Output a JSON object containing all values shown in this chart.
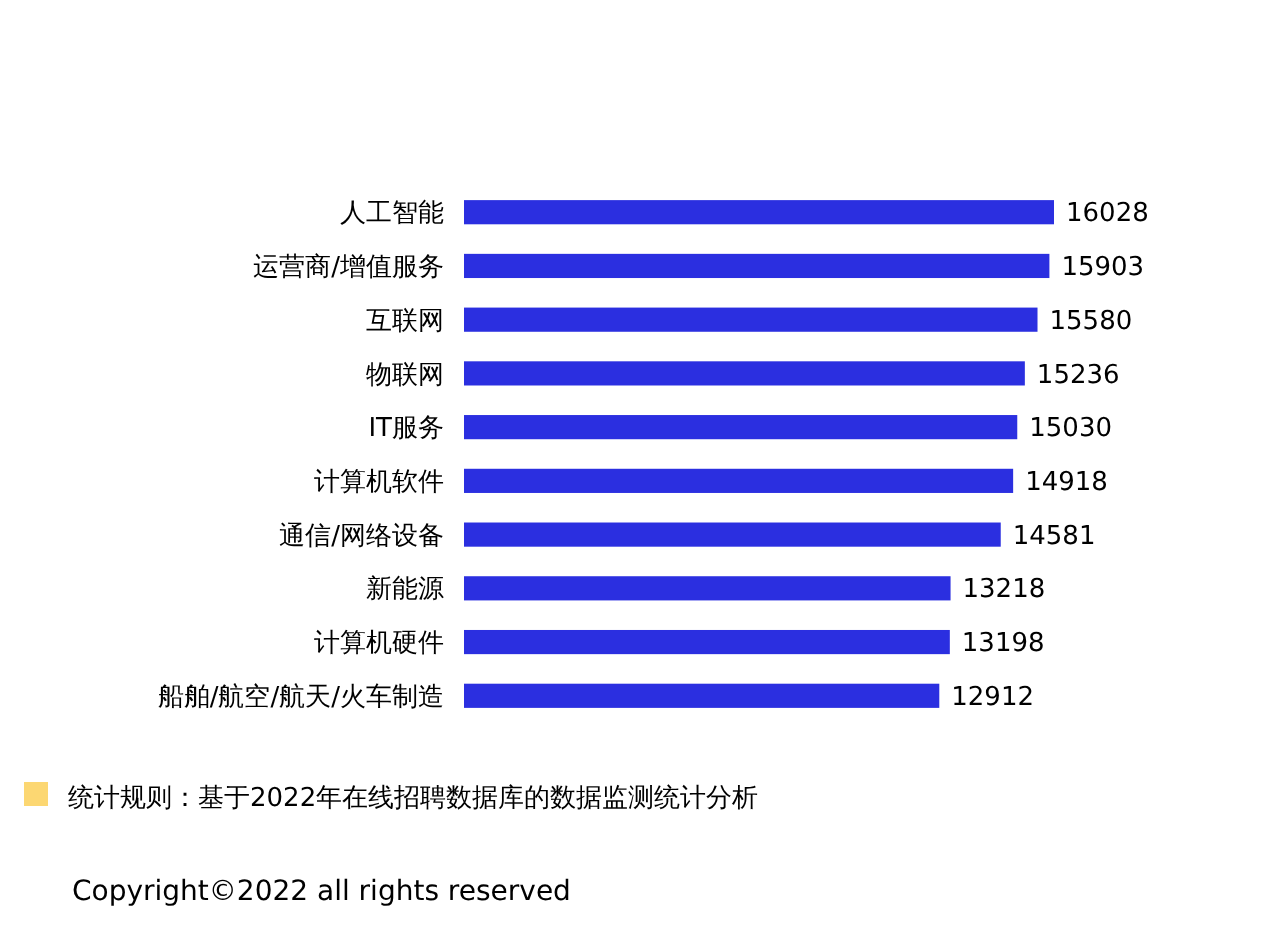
{
  "chart_data": {
    "type": "bar",
    "orientation": "horizontal",
    "data_labels": true,
    "categories": [
      "人工智能",
      "运营商/增值服务",
      "互联网",
      "物联网",
      "IT服务",
      "计算机软件",
      "通信/网络设备",
      "新能源",
      "计算机硬件",
      "船舶/航空/航天/火车制造"
    ],
    "values": [
      16028,
      15903,
      15580,
      15236,
      15030,
      14918,
      14581,
      13218,
      13198,
      12912
    ],
    "color": "#2b2fe0",
    "annotations": [
      "统计规则：基于2022年在线招聘数据库的数据监测统计分析",
      "Copyright©2022 all rights reserved"
    ]
  }
}
